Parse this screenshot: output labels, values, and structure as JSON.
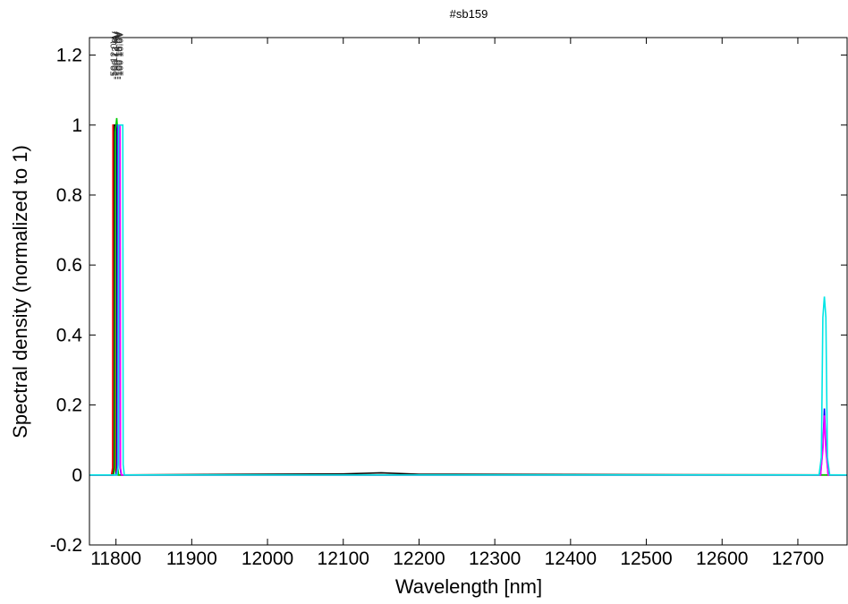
{
  "chart_data": {
    "type": "line",
    "title": "#sb159",
    "xlabel": "Wavelength [nm]",
    "ylabel": "Spectral density (normalized to 1)",
    "xlim": [
      11765,
      12765
    ],
    "ylim": [
      -0.2,
      1.25
    ],
    "x_ticks": [
      11800,
      11900,
      12000,
      12100,
      12200,
      12300,
      12400,
      12500,
      12600,
      12700
    ],
    "x_tick_labels": [
      "11800",
      "11900",
      "12000",
      "12100",
      "12200",
      "12300",
      "12400",
      "12500",
      "12600",
      "12700"
    ],
    "y_ticks": [
      -0.2,
      0,
      0.2,
      0.4,
      0.6,
      0.8,
      1,
      1.2
    ],
    "y_tick_labels": [
      "-0.2",
      "0",
      "0.2",
      "0.4",
      "0.6",
      "0.8",
      "1",
      "1.2"
    ],
    "grid": false,
    "legend": "none",
    "annotations": [
      {
        "text": "-50 12.0V",
        "x": 11798
      },
      {
        "text": "-100 13.0V",
        "x": 11800
      },
      {
        "text": "-150 14.0V",
        "x": 11802
      },
      {
        "text": "-100 15.0V",
        "x": 11804
      },
      {
        "text": "-100 16.0V",
        "x": 11806
      }
    ],
    "series": [
      {
        "color": "#ff0000",
        "x": [
          11765,
          11794,
          11795.5,
          11796,
          11799,
          11799.5,
          11800.5,
          12765
        ],
        "y": [
          0,
          0,
          0.02,
          1,
          1,
          0.02,
          0,
          0
        ]
      },
      {
        "color": "#000000",
        "x": [
          11765,
          11796,
          11797.5,
          11798,
          11801,
          11801.5,
          11803,
          12100,
          12150,
          12200,
          12765
        ],
        "y": [
          0,
          0,
          0.02,
          1,
          1,
          0.02,
          0,
          0.003,
          0.006,
          0.002,
          0
        ]
      },
      {
        "color": "#00cc00",
        "x": [
          11765,
          11797,
          11798.5,
          11799,
          11801,
          11802,
          11802.5,
          11803.5,
          12765
        ],
        "y": [
          0,
          0,
          0.02,
          0.98,
          1.02,
          0.99,
          0.02,
          0,
          0
        ]
      },
      {
        "color": "#0000ff",
        "x": [
          11765,
          11800,
          11801.5,
          11802,
          11805,
          11805.5,
          11807,
          12730,
          12733,
          12735,
          12737,
          12740,
          12765
        ],
        "y": [
          0,
          0,
          0.02,
          1,
          1,
          0.02,
          0,
          0,
          0.08,
          0.19,
          0.08,
          0,
          0
        ]
      },
      {
        "color": "#ff00ff",
        "x": [
          11765,
          11801,
          11802.5,
          11803,
          11805.5,
          11806,
          11807.5,
          12730,
          12733,
          12735,
          12737,
          12740,
          12765
        ],
        "y": [
          0,
          0,
          0.02,
          1,
          1,
          0.02,
          0,
          0,
          0.07,
          0.17,
          0.07,
          0,
          0
        ]
      },
      {
        "color": "#00e5e5",
        "x": [
          11765,
          11801.5,
          11803,
          11803.5,
          11809,
          11809.5,
          11811,
          12728,
          12731,
          12733,
          12735,
          12737,
          12739,
          12742,
          12765
        ],
        "y": [
          0,
          0,
          0.03,
          1,
          1,
          0.03,
          0,
          0,
          0.05,
          0.45,
          0.51,
          0.45,
          0.05,
          0,
          0
        ]
      }
    ]
  }
}
